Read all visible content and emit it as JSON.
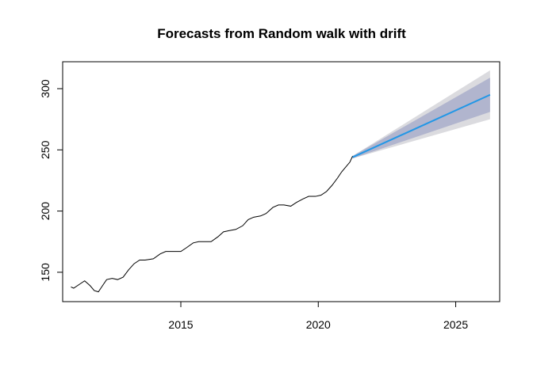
{
  "chart_data": {
    "type": "line",
    "title": "Forecasts from Random walk with drift",
    "xlabel": "",
    "ylabel": "",
    "xlim": [
      2010.7,
      2026.6
    ],
    "ylim": [
      126,
      322
    ],
    "x_ticks": [
      2015,
      2020,
      2025
    ],
    "y_ticks": [
      150,
      200,
      250,
      300
    ],
    "grid": false,
    "colors": {
      "history": "#000000",
      "forecast_mean": "#2297E6",
      "band_80": "#B1B5CE",
      "band_95": "#DBDBDF"
    },
    "series": [
      {
        "role": "history",
        "x": [
          2011.0,
          2011.1,
          2011.3,
          2011.5,
          2011.7,
          2011.85,
          2012.0,
          2012.15,
          2012.3,
          2012.5,
          2012.7,
          2012.9,
          2013.1,
          2013.3,
          2013.5,
          2013.7,
          2014.0,
          2014.25,
          2014.45,
          2014.65,
          2014.85,
          2015.0,
          2015.2,
          2015.45,
          2015.65,
          2015.9,
          2016.1,
          2016.35,
          2016.55,
          2016.75,
          2017.0,
          2017.25,
          2017.45,
          2017.65,
          2017.9,
          2018.1,
          2018.35,
          2018.55,
          2018.75,
          2019.0,
          2019.2,
          2019.45,
          2019.65,
          2019.9,
          2020.1,
          2020.3,
          2020.5,
          2020.7,
          2020.85,
          2021.0,
          2021.15,
          2021.25
        ],
        "values": [
          138,
          137,
          140,
          143,
          139,
          135,
          134,
          139,
          144,
          145,
          144,
          146,
          152,
          157,
          160,
          160,
          161,
          165,
          167,
          167,
          167,
          167,
          170,
          174,
          175,
          175,
          175,
          179,
          183,
          184,
          185,
          188,
          193,
          195,
          196,
          198,
          203,
          205,
          205,
          204,
          207,
          210,
          212,
          212,
          213,
          216,
          221,
          227,
          232,
          236,
          240,
          245
        ]
      },
      {
        "role": "forecast_mean",
        "x": [
          2021.25,
          2026.25
        ],
        "values": [
          244,
          295
        ]
      },
      {
        "role": "band_95",
        "x": [
          2021.25,
          2026.25
        ],
        "lower": [
          243,
          275
        ],
        "upper": [
          245,
          315
        ]
      },
      {
        "role": "band_80",
        "x": [
          2021.25,
          2026.25
        ],
        "lower": [
          243,
          281
        ],
        "upper": [
          245,
          309
        ]
      }
    ]
  }
}
